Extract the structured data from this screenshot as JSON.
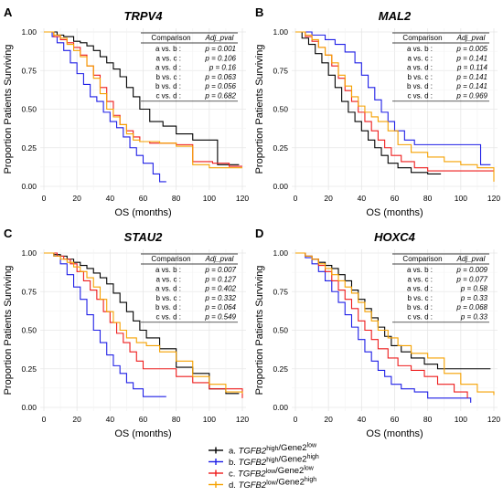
{
  "figure": {
    "y_axis_label": "Proportion Patients Surviving",
    "x_axis_label": "OS (months)",
    "table_header": {
      "comparison": "Comparison",
      "pval": "Adj_pval"
    }
  },
  "legend": {
    "entries": [
      {
        "id": "a",
        "prefix": "a. ",
        "gene": "TGFB2",
        "gene_sup": "high",
        "sep": "/Gene2",
        "gene2_sup": "low",
        "color": "#000000"
      },
      {
        "id": "b",
        "prefix": "b. ",
        "gene": "TGFB2",
        "gene_sup": "high",
        "sep": "/Gene2",
        "gene2_sup": "high",
        "color": "#1f1fe6"
      },
      {
        "id": "c",
        "prefix": "c. ",
        "gene": "TGFB2",
        "gene_sup": "low",
        "sep": "/Gene2",
        "gene2_sup": "low",
        "color": "#ee1c1c"
      },
      {
        "id": "d",
        "prefix": "d. ",
        "gene": "TGFB2",
        "gene_sup": "low",
        "sep": "/Gene2",
        "gene2_sup": "high",
        "color": "#f5a100"
      }
    ]
  },
  "chart_data": [
    {
      "type": "line",
      "panel": "A",
      "title": "TRPV4",
      "xlabel": "OS (months)",
      "ylabel": "Proportion Patients Surviving",
      "xlim": [
        0,
        120
      ],
      "ylim": [
        0,
        1
      ],
      "xticks": [
        "0",
        "20",
        "40",
        "60",
        "80",
        "100",
        "120"
      ],
      "yticks": [
        "0.00",
        "0.25",
        "0.50",
        "0.75",
        "1.00"
      ],
      "grid": true,
      "series": [
        {
          "key": "a",
          "color": "#000000",
          "x": [
            0,
            8,
            12,
            18,
            22,
            26,
            30,
            34,
            38,
            42,
            46,
            50,
            54,
            58,
            64,
            72,
            80,
            90,
            100,
            105,
            118
          ],
          "y": [
            1,
            0.98,
            0.97,
            0.94,
            0.93,
            0.91,
            0.88,
            0.84,
            0.8,
            0.76,
            0.71,
            0.64,
            0.58,
            0.5,
            0.42,
            0.39,
            0.34,
            0.3,
            0.3,
            0.14,
            0.14
          ]
        },
        {
          "key": "b",
          "color": "#1f1fe6",
          "x": [
            0,
            5,
            8,
            12,
            16,
            20,
            24,
            28,
            32,
            36,
            40,
            44,
            48,
            52,
            56,
            60,
            66,
            70,
            74
          ],
          "y": [
            1,
            0.97,
            0.93,
            0.88,
            0.8,
            0.73,
            0.66,
            0.58,
            0.55,
            0.48,
            0.42,
            0.38,
            0.32,
            0.25,
            0.2,
            0.15,
            0.08,
            0.03,
            0.03
          ]
        },
        {
          "key": "c",
          "color": "#ee1c1c",
          "x": [
            0,
            6,
            10,
            14,
            18,
            22,
            26,
            30,
            34,
            38,
            42,
            46,
            50,
            54,
            58,
            64,
            72,
            80,
            90,
            102,
            112,
            120
          ],
          "y": [
            1,
            0.97,
            0.95,
            0.93,
            0.9,
            0.85,
            0.78,
            0.72,
            0.64,
            0.55,
            0.46,
            0.4,
            0.36,
            0.32,
            0.29,
            0.28,
            0.28,
            0.27,
            0.16,
            0.15,
            0.13,
            0.13
          ]
        },
        {
          "key": "d",
          "color": "#f5a100",
          "x": [
            0,
            6,
            10,
            14,
            18,
            22,
            26,
            30,
            34,
            38,
            42,
            46,
            50,
            54,
            58,
            62,
            70,
            80,
            90,
            100,
            120
          ],
          "y": [
            1,
            0.98,
            0.96,
            0.92,
            0.88,
            0.84,
            0.78,
            0.7,
            0.6,
            0.5,
            0.45,
            0.4,
            0.34,
            0.3,
            0.29,
            0.29,
            0.28,
            0.26,
            0.14,
            0.12,
            0.12
          ]
        }
      ],
      "pvals": [
        {
          "comparison": "a vs. b :",
          "pval": "p = 0.001"
        },
        {
          "comparison": "a vs. c :",
          "pval": "p = 0.106"
        },
        {
          "comparison": "a vs. d :",
          "pval": "p = 0.16"
        },
        {
          "comparison": "b vs. c :",
          "pval": "p = 0.063"
        },
        {
          "comparison": "b vs. d :",
          "pval": "p = 0.056"
        },
        {
          "comparison": "c vs. d :",
          "pval": "p = 0.682"
        }
      ]
    },
    {
      "type": "line",
      "panel": "B",
      "title": "MAL2",
      "xlabel": "OS (months)",
      "ylabel": "Proportion Patients Surviving",
      "xlim": [
        0,
        120
      ],
      "ylim": [
        0,
        1
      ],
      "xticks": [
        "0",
        "20",
        "40",
        "60",
        "80",
        "100",
        "120"
      ],
      "yticks": [
        "0.00",
        "0.25",
        "0.50",
        "0.75",
        "1.00"
      ],
      "grid": true,
      "series": [
        {
          "key": "a",
          "color": "#000000",
          "x": [
            0,
            4,
            8,
            12,
            16,
            20,
            24,
            28,
            32,
            36,
            40,
            44,
            48,
            52,
            56,
            62,
            70,
            80,
            88
          ],
          "y": [
            1,
            0.96,
            0.92,
            0.86,
            0.8,
            0.72,
            0.64,
            0.55,
            0.48,
            0.42,
            0.36,
            0.3,
            0.25,
            0.2,
            0.15,
            0.12,
            0.09,
            0.08,
            0.08
          ]
        },
        {
          "key": "b",
          "color": "#1f1fe6",
          "x": [
            0,
            10,
            18,
            24,
            30,
            36,
            40,
            44,
            48,
            52,
            56,
            60,
            66,
            72,
            80,
            90,
            100,
            106,
            112,
            118
          ],
          "y": [
            1,
            0.98,
            0.95,
            0.92,
            0.87,
            0.8,
            0.72,
            0.64,
            0.56,
            0.48,
            0.42,
            0.36,
            0.3,
            0.27,
            0.27,
            0.27,
            0.27,
            0.27,
            0.14,
            0.14
          ]
        },
        {
          "key": "c",
          "color": "#ee1c1c",
          "x": [
            0,
            6,
            10,
            14,
            18,
            22,
            26,
            30,
            34,
            38,
            42,
            46,
            50,
            54,
            58,
            64,
            72,
            80,
            90,
            100,
            106,
            112,
            120
          ],
          "y": [
            1,
            0.97,
            0.94,
            0.9,
            0.85,
            0.78,
            0.7,
            0.62,
            0.55,
            0.48,
            0.42,
            0.36,
            0.3,
            0.25,
            0.2,
            0.16,
            0.12,
            0.1,
            0.1,
            0.1,
            0.1,
            0.1,
            0.1
          ]
        },
        {
          "key": "d",
          "color": "#f5a100",
          "x": [
            0,
            6,
            10,
            14,
            18,
            22,
            26,
            30,
            34,
            38,
            42,
            46,
            50,
            56,
            62,
            70,
            80,
            90,
            100,
            110,
            120
          ],
          "y": [
            1,
            0.98,
            0.95,
            0.9,
            0.85,
            0.8,
            0.72,
            0.65,
            0.58,
            0.52,
            0.48,
            0.45,
            0.42,
            0.36,
            0.27,
            0.22,
            0.19,
            0.16,
            0.14,
            0.12,
            0.03
          ]
        }
      ],
      "pvals": [
        {
          "comparison": "a vs. b :",
          "pval": "p = 0.005"
        },
        {
          "comparison": "a vs. c :",
          "pval": "p = 0.141"
        },
        {
          "comparison": "a vs. d :",
          "pval": "p = 0.114"
        },
        {
          "comparison": "b vs. c :",
          "pval": "p = 0.141"
        },
        {
          "comparison": "b vs. d :",
          "pval": "p = 0.141"
        },
        {
          "comparison": "c vs. d :",
          "pval": "p = 0.969"
        }
      ]
    },
    {
      "type": "line",
      "panel": "C",
      "title": "STAU2",
      "xlabel": "OS (months)",
      "ylabel": "Proportion Patients Surviving",
      "xlim": [
        0,
        120
      ],
      "ylim": [
        0,
        1
      ],
      "xticks": [
        "0",
        "20",
        "40",
        "60",
        "80",
        "100",
        "120"
      ],
      "yticks": [
        "0.00",
        "0.25",
        "0.50",
        "0.75",
        "1.00"
      ],
      "grid": true,
      "series": [
        {
          "key": "a",
          "color": "#000000",
          "x": [
            0,
            6,
            10,
            14,
            18,
            22,
            26,
            30,
            34,
            38,
            42,
            46,
            50,
            54,
            58,
            62,
            70,
            80,
            90,
            100,
            110,
            118
          ],
          "y": [
            1,
            0.99,
            0.98,
            0.96,
            0.94,
            0.92,
            0.9,
            0.87,
            0.84,
            0.8,
            0.74,
            0.68,
            0.62,
            0.56,
            0.5,
            0.45,
            0.38,
            0.26,
            0.22,
            0.12,
            0.09,
            0.09
          ]
        },
        {
          "key": "b",
          "color": "#1f1fe6",
          "x": [
            0,
            6,
            10,
            14,
            18,
            22,
            26,
            30,
            34,
            38,
            42,
            46,
            50,
            54,
            60,
            66,
            74
          ],
          "y": [
            1,
            0.98,
            0.93,
            0.86,
            0.78,
            0.7,
            0.6,
            0.5,
            0.42,
            0.34,
            0.27,
            0.22,
            0.16,
            0.12,
            0.07,
            0.07,
            0.07
          ]
        },
        {
          "key": "c",
          "color": "#ee1c1c",
          "x": [
            0,
            8,
            12,
            16,
            20,
            24,
            28,
            32,
            36,
            40,
            44,
            48,
            52,
            56,
            60,
            66,
            72,
            80,
            90,
            100,
            120
          ],
          "y": [
            1,
            0.98,
            0.96,
            0.93,
            0.88,
            0.82,
            0.76,
            0.7,
            0.62,
            0.55,
            0.48,
            0.42,
            0.36,
            0.3,
            0.25,
            0.25,
            0.25,
            0.2,
            0.16,
            0.12,
            0.06
          ]
        },
        {
          "key": "d",
          "color": "#f5a100",
          "x": [
            0,
            6,
            10,
            14,
            18,
            22,
            26,
            30,
            34,
            38,
            42,
            46,
            50,
            56,
            62,
            70,
            80,
            90,
            100,
            110,
            120
          ],
          "y": [
            1,
            0.98,
            0.96,
            0.94,
            0.91,
            0.88,
            0.84,
            0.78,
            0.7,
            0.62,
            0.55,
            0.5,
            0.45,
            0.42,
            0.4,
            0.36,
            0.3,
            0.2,
            0.15,
            0.1,
            0.09
          ]
        }
      ],
      "pvals": [
        {
          "comparison": "a vs. b :",
          "pval": "p = 0.007"
        },
        {
          "comparison": "a vs. c :",
          "pval": "p = 0.127"
        },
        {
          "comparison": "a vs. d :",
          "pval": "p = 0.402"
        },
        {
          "comparison": "b vs. c :",
          "pval": "p = 0.332"
        },
        {
          "comparison": "b vs. d :",
          "pval": "p = 0.064"
        },
        {
          "comparison": "c vs. d :",
          "pval": "p = 0.549"
        }
      ]
    },
    {
      "type": "line",
      "panel": "D",
      "title": "HOXC4",
      "xlabel": "OS (months)",
      "ylabel": "Proportion Patients Surviving",
      "xlim": [
        0,
        120
      ],
      "ylim": [
        0,
        1
      ],
      "xticks": [
        "0",
        "20",
        "40",
        "60",
        "80",
        "100",
        "120"
      ],
      "yticks": [
        "0.00",
        "0.25",
        "0.50",
        "0.75",
        "1.00"
      ],
      "grid": true,
      "series": [
        {
          "key": "a",
          "color": "#000000",
          "x": [
            0,
            6,
            10,
            14,
            18,
            22,
            26,
            30,
            34,
            38,
            42,
            46,
            50,
            54,
            58,
            64,
            70,
            78,
            86,
            100,
            118
          ],
          "y": [
            1,
            0.98,
            0.96,
            0.94,
            0.92,
            0.9,
            0.86,
            0.82,
            0.76,
            0.7,
            0.64,
            0.58,
            0.52,
            0.46,
            0.4,
            0.36,
            0.32,
            0.28,
            0.25,
            0.25,
            0.25
          ]
        },
        {
          "key": "b",
          "color": "#1f1fe6",
          "x": [
            0,
            6,
            10,
            14,
            18,
            22,
            26,
            30,
            34,
            38,
            42,
            46,
            50,
            54,
            58,
            64,
            72,
            80,
            90,
            100,
            106
          ],
          "y": [
            1,
            0.97,
            0.93,
            0.88,
            0.82,
            0.75,
            0.68,
            0.6,
            0.52,
            0.44,
            0.36,
            0.3,
            0.24,
            0.2,
            0.15,
            0.12,
            0.1,
            0.06,
            0.06,
            0.06,
            0.03
          ]
        },
        {
          "key": "c",
          "color": "#ee1c1c",
          "x": [
            0,
            6,
            10,
            14,
            18,
            22,
            26,
            30,
            34,
            38,
            42,
            46,
            50,
            56,
            62,
            70,
            78,
            86,
            96,
            104
          ],
          "y": [
            1,
            0.98,
            0.96,
            0.92,
            0.88,
            0.82,
            0.76,
            0.7,
            0.64,
            0.56,
            0.5,
            0.44,
            0.38,
            0.32,
            0.27,
            0.24,
            0.2,
            0.15,
            0.1,
            0.06
          ]
        },
        {
          "key": "d",
          "color": "#f5a100",
          "x": [
            0,
            6,
            10,
            14,
            18,
            22,
            26,
            30,
            34,
            38,
            42,
            46,
            50,
            56,
            62,
            70,
            80,
            90,
            100,
            110,
            120
          ],
          "y": [
            1,
            0.98,
            0.96,
            0.93,
            0.9,
            0.86,
            0.82,
            0.78,
            0.74,
            0.68,
            0.62,
            0.56,
            0.5,
            0.45,
            0.4,
            0.35,
            0.32,
            0.22,
            0.15,
            0.1,
            0.08
          ]
        }
      ],
      "pvals": [
        {
          "comparison": "a vs. b :",
          "pval": "p = 0.009"
        },
        {
          "comparison": "a vs. c :",
          "pval": "p = 0.077"
        },
        {
          "comparison": "a vs. d :",
          "pval": "p = 0.58"
        },
        {
          "comparison": "b vs. c :",
          "pval": "p = 0.33"
        },
        {
          "comparison": "b vs. d :",
          "pval": "p = 0.068"
        },
        {
          "comparison": "c vs. d :",
          "pval": "p = 0.33"
        }
      ]
    }
  ]
}
